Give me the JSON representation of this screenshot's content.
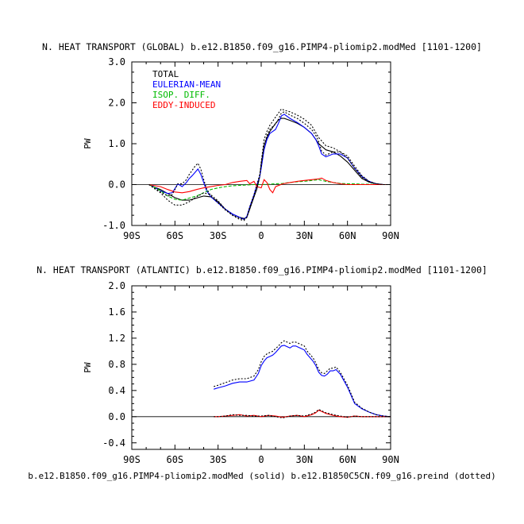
{
  "chart_data": [
    {
      "type": "line",
      "title": "N. HEAT TRANSPORT (GLOBAL) b.e12.B1850.f09_g16.PIMP4-pliomip2.modMed [1101-1200]",
      "xlabel": "",
      "ylabel": "PW",
      "xlim": [
        -90,
        90
      ],
      "ylim": [
        -1.0,
        3.0
      ],
      "xticks": [
        -90,
        -60,
        -30,
        0,
        30,
        60,
        90
      ],
      "xtick_labels": [
        "90S",
        "60S",
        "30S",
        "0",
        "30N",
        "60N",
        "90N"
      ],
      "yticks": [
        -1.0,
        0.0,
        1.0,
        2.0,
        3.0
      ],
      "ytick_labels": [
        "-1.0",
        "0.0",
        "1.0",
        "2.0",
        "3.0"
      ],
      "legend": [
        "TOTAL",
        "EULERIAN-MEAN",
        "ISOP. DIFF.",
        "EDDY-INDUCED"
      ],
      "legend_colors": [
        "#000000",
        "#0000ff",
        "#00bb00",
        "#ff0000"
      ],
      "series": [
        {
          "name": "TOTAL",
          "style": "solid",
          "color": "#000000",
          "x": [
            -78,
            -75,
            -70,
            -65,
            -60,
            -55,
            -50,
            -45,
            -40,
            -35,
            -30,
            -25,
            -20,
            -15,
            -12,
            -10,
            -8,
            -5,
            -3,
            -1,
            0,
            2,
            4,
            6,
            8,
            10,
            12,
            14,
            16,
            20,
            25,
            30,
            35,
            40,
            45,
            50,
            55,
            60,
            65,
            70,
            75,
            80,
            85,
            90
          ],
          "values": [
            0,
            -0.05,
            -0.12,
            -0.22,
            -0.32,
            -0.38,
            -0.38,
            -0.33,
            -0.28,
            -0.3,
            -0.42,
            -0.6,
            -0.72,
            -0.8,
            -0.83,
            -0.8,
            -0.6,
            -0.3,
            -0.1,
            0.2,
            0.5,
            0.95,
            1.15,
            1.3,
            1.4,
            1.5,
            1.58,
            1.62,
            1.62,
            1.57,
            1.5,
            1.4,
            1.25,
            1.0,
            0.85,
            0.8,
            0.7,
            0.55,
            0.35,
            0.15,
            0.06,
            0.02,
            0,
            0
          ]
        },
        {
          "name": "EULERIAN-MEAN",
          "style": "solid",
          "color": "#0000ff",
          "x": [
            -78,
            -75,
            -70,
            -65,
            -62,
            -60,
            -58,
            -55,
            -52,
            -50,
            -48,
            -46,
            -44,
            -42,
            -40,
            -38,
            -35,
            -30,
            -25,
            -20,
            -15,
            -12,
            -10,
            -8,
            -5,
            -3,
            -1,
            0,
            2,
            4,
            6,
            8,
            10,
            12,
            14,
            16,
            20,
            25,
            30,
            35,
            38,
            40,
            42,
            45,
            50,
            55,
            60,
            65,
            70,
            75,
            80,
            85,
            90
          ],
          "values": [
            0,
            -0.05,
            -0.15,
            -0.22,
            -0.2,
            -0.1,
            0.02,
            -0.05,
            0.05,
            0.15,
            0.22,
            0.3,
            0.38,
            0.25,
            0.05,
            -0.15,
            -0.3,
            -0.45,
            -0.6,
            -0.72,
            -0.8,
            -0.85,
            -0.78,
            -0.55,
            -0.25,
            0,
            0.2,
            0.4,
            0.85,
            1.1,
            1.25,
            1.3,
            1.35,
            1.5,
            1.68,
            1.72,
            1.62,
            1.52,
            1.4,
            1.25,
            1.1,
            0.95,
            0.75,
            0.68,
            0.75,
            0.75,
            0.65,
            0.4,
            0.2,
            0.08,
            0.02,
            0,
            0
          ]
        },
        {
          "name": "ISOP. DIFF.",
          "style": "dashed",
          "color": "#00bb00",
          "x": [
            -78,
            -75,
            -70,
            -65,
            -60,
            -55,
            -50,
            -45,
            -40,
            -35,
            -30,
            -25,
            -20,
            -15,
            -10,
            -5,
            0,
            5,
            10,
            15,
            20,
            25,
            30,
            35,
            40,
            45,
            50,
            55,
            60,
            65,
            70,
            75,
            80,
            85,
            90
          ],
          "values": [
            0,
            -0.05,
            -0.15,
            -0.28,
            -0.36,
            -0.38,
            -0.33,
            -0.28,
            -0.2,
            -0.12,
            -0.08,
            -0.05,
            -0.03,
            -0.02,
            -0.01,
            0,
            0,
            0.01,
            0.02,
            0.03,
            0.05,
            0.07,
            0.08,
            0.1,
            0.12,
            0.08,
            0.05,
            0.03,
            0.02,
            0.02,
            0.01,
            0.01,
            0,
            0,
            0
          ]
        },
        {
          "name": "EDDY-INDUCED",
          "style": "solid",
          "color": "#ff0000",
          "x": [
            -78,
            -75,
            -70,
            -65,
            -60,
            -55,
            -50,
            -45,
            -40,
            -35,
            -30,
            -25,
            -20,
            -15,
            -10,
            -8,
            -5,
            -3,
            0,
            2,
            4,
            6,
            8,
            10,
            15,
            20,
            25,
            30,
            35,
            40,
            42,
            45,
            50,
            55,
            60,
            65,
            70,
            75,
            80,
            85,
            90
          ],
          "values": [
            0,
            -0.02,
            -0.05,
            -0.12,
            -0.18,
            -0.2,
            -0.17,
            -0.12,
            -0.08,
            -0.05,
            -0.02,
            0,
            0.05,
            0.08,
            0.1,
            0.02,
            0.08,
            -0.05,
            -0.08,
            0.12,
            0.05,
            -0.12,
            -0.2,
            -0.05,
            0.02,
            0.05,
            0.08,
            0.1,
            0.12,
            0.14,
            0.16,
            0.1,
            0.05,
            0.02,
            0,
            0,
            0,
            0,
            0,
            0,
            0
          ]
        },
        {
          "name": "TOTAL (preind, dotted)",
          "style": "dotted",
          "color": "#000000",
          "x": [
            -78,
            -75,
            -70,
            -65,
            -60,
            -55,
            -50,
            -45,
            -40,
            -35,
            -30,
            -25,
            -20,
            -15,
            -12,
            -10,
            -8,
            -5,
            -3,
            -1,
            0,
            2,
            4,
            6,
            8,
            10,
            12,
            14,
            16,
            20,
            25,
            30,
            35,
            40,
            45,
            50,
            55,
            60,
            65,
            70,
            75,
            80,
            85,
            90
          ],
          "values": [
            0,
            -0.08,
            -0.2,
            -0.38,
            -0.5,
            -0.5,
            -0.42,
            -0.3,
            -0.2,
            -0.25,
            -0.4,
            -0.6,
            -0.75,
            -0.82,
            -0.85,
            -0.8,
            -0.6,
            -0.3,
            -0.1,
            0.2,
            0.55,
            1.1,
            1.3,
            1.45,
            1.55,
            1.65,
            1.75,
            1.85,
            1.82,
            1.78,
            1.7,
            1.6,
            1.45,
            1.15,
            0.95,
            0.9,
            0.8,
            0.65,
            0.4,
            0.18,
            0.06,
            0.02,
            0,
            0
          ]
        },
        {
          "name": "EULERIAN-MEAN (preind, dotted)",
          "style": "dotted",
          "color": "#000000",
          "x": [
            -78,
            -75,
            -70,
            -65,
            -62,
            -60,
            -58,
            -55,
            -52,
            -50,
            -48,
            -46,
            -44,
            -42,
            -40,
            -38,
            -35,
            -30,
            -25,
            -20,
            -15,
            -12,
            -10,
            -8,
            -5,
            -3,
            -1,
            0,
            2,
            4,
            6,
            8,
            10,
            12,
            14,
            16,
            20,
            25,
            30,
            35,
            38,
            40,
            42,
            45,
            50,
            55,
            60,
            65,
            70,
            75,
            80,
            85,
            90
          ],
          "values": [
            0,
            -0.07,
            -0.18,
            -0.28,
            -0.25,
            -0.12,
            0.02,
            0.02,
            0.12,
            0.25,
            0.35,
            0.45,
            0.52,
            0.38,
            0.12,
            -0.1,
            -0.28,
            -0.45,
            -0.62,
            -0.75,
            -0.85,
            -0.88,
            -0.8,
            -0.55,
            -0.25,
            0,
            0.25,
            0.45,
            0.95,
            1.2,
            1.35,
            1.42,
            1.48,
            1.6,
            1.75,
            1.78,
            1.7,
            1.62,
            1.5,
            1.35,
            1.2,
            1.05,
            0.82,
            0.72,
            0.8,
            0.8,
            0.7,
            0.45,
            0.22,
            0.08,
            0.02,
            0,
            0
          ]
        }
      ]
    },
    {
      "type": "line",
      "title": "N. HEAT TRANSPORT (ATLANTIC) b.e12.B1850.f09_g16.PIMP4-pliomip2.modMed [1101-1200]",
      "xlabel": "b.e12.B1850.f09_g16.PIMP4-pliomip2.modMed (solid) b.e12.B1850C5CN.f09_g16.preind (dotted)",
      "ylabel": "PW",
      "xlim": [
        -90,
        90
      ],
      "ylim": [
        -0.5,
        2.0
      ],
      "xticks": [
        -90,
        -60,
        -30,
        0,
        30,
        60,
        90
      ],
      "xtick_labels": [
        "90S",
        "60S",
        "30S",
        "0",
        "30N",
        "60N",
        "90N"
      ],
      "yticks": [
        -0.4,
        0.0,
        0.4,
        0.8,
        1.2,
        1.6,
        2.0
      ],
      "ytick_labels": [
        "-0.4",
        "0.0",
        "0.4",
        "0.8",
        "1.2",
        "1.6",
        "2.0"
      ],
      "series": [
        {
          "name": "EULERIAN-MEAN",
          "style": "solid",
          "color": "#0000ff",
          "x": [
            -33,
            -30,
            -25,
            -20,
            -15,
            -10,
            -5,
            -2,
            0,
            2,
            4,
            6,
            8,
            10,
            12,
            14,
            16,
            18,
            20,
            22,
            24,
            26,
            28,
            30,
            32,
            34,
            36,
            38,
            40,
            42,
            44,
            46,
            48,
            50,
            52,
            55,
            60,
            65,
            70,
            75,
            80,
            85,
            90
          ],
          "values": [
            0.42,
            0.44,
            0.47,
            0.51,
            0.53,
            0.53,
            0.56,
            0.66,
            0.78,
            0.85,
            0.9,
            0.92,
            0.94,
            0.98,
            1.03,
            1.08,
            1.09,
            1.07,
            1.05,
            1.08,
            1.08,
            1.06,
            1.04,
            1.02,
            0.95,
            0.9,
            0.85,
            0.78,
            0.68,
            0.63,
            0.62,
            0.65,
            0.7,
            0.7,
            0.72,
            0.65,
            0.45,
            0.2,
            0.12,
            0.07,
            0.03,
            0.01,
            0
          ]
        },
        {
          "name": "EDDY-INDUCED",
          "style": "solid",
          "color": "#ff0000",
          "x": [
            -33,
            -30,
            -25,
            -20,
            -15,
            -10,
            -5,
            0,
            5,
            10,
            15,
            20,
            25,
            30,
            35,
            38,
            40,
            42,
            45,
            50,
            55,
            60,
            65,
            70,
            75,
            80,
            85,
            90
          ],
          "values": [
            0,
            0,
            0.01,
            0.02,
            0.03,
            0.01,
            0.02,
            0,
            0.02,
            0.01,
            -0.01,
            0.01,
            0.02,
            0,
            0.03,
            0.06,
            0.1,
            0.08,
            0.05,
            0.02,
            0,
            -0.01,
            0.01,
            0,
            0,
            0,
            0,
            0
          ]
        },
        {
          "name": "EULERIAN-MEAN (preind, dotted)",
          "style": "dotted",
          "color": "#000000",
          "x": [
            -33,
            -30,
            -25,
            -20,
            -15,
            -10,
            -5,
            -2,
            0,
            2,
            4,
            6,
            8,
            10,
            12,
            14,
            16,
            18,
            20,
            22,
            24,
            26,
            28,
            30,
            32,
            34,
            36,
            38,
            40,
            42,
            44,
            46,
            48,
            50,
            52,
            55,
            60,
            65,
            70,
            75,
            80,
            85,
            90
          ],
          "values": [
            0.46,
            0.48,
            0.52,
            0.56,
            0.58,
            0.58,
            0.62,
            0.72,
            0.84,
            0.92,
            0.96,
            0.98,
            1.0,
            1.04,
            1.08,
            1.13,
            1.16,
            1.14,
            1.12,
            1.14,
            1.14,
            1.12,
            1.1,
            1.08,
            1.0,
            0.95,
            0.9,
            0.82,
            0.72,
            0.67,
            0.66,
            0.7,
            0.74,
            0.74,
            0.76,
            0.68,
            0.48,
            0.22,
            0.13,
            0.07,
            0.03,
            0.01,
            0
          ]
        },
        {
          "name": "EDDY-INDUCED (preind, dotted)",
          "style": "dotted",
          "color": "#000000",
          "x": [
            -33,
            -30,
            -25,
            -20,
            -15,
            -10,
            -5,
            0,
            5,
            10,
            15,
            20,
            25,
            30,
            35,
            38,
            40,
            42,
            45,
            50,
            55,
            60,
            65,
            70,
            75,
            80,
            85,
            90
          ],
          "values": [
            0,
            0,
            0.01,
            0.03,
            0.02,
            0.02,
            0.01,
            0.01,
            0.02,
            0,
            -0.02,
            0.01,
            0.02,
            0.01,
            0.04,
            0.07,
            0.11,
            0.09,
            0.06,
            0.03,
            0.01,
            -0.01,
            0.01,
            0,
            0,
            0,
            0,
            0
          ]
        }
      ]
    }
  ]
}
